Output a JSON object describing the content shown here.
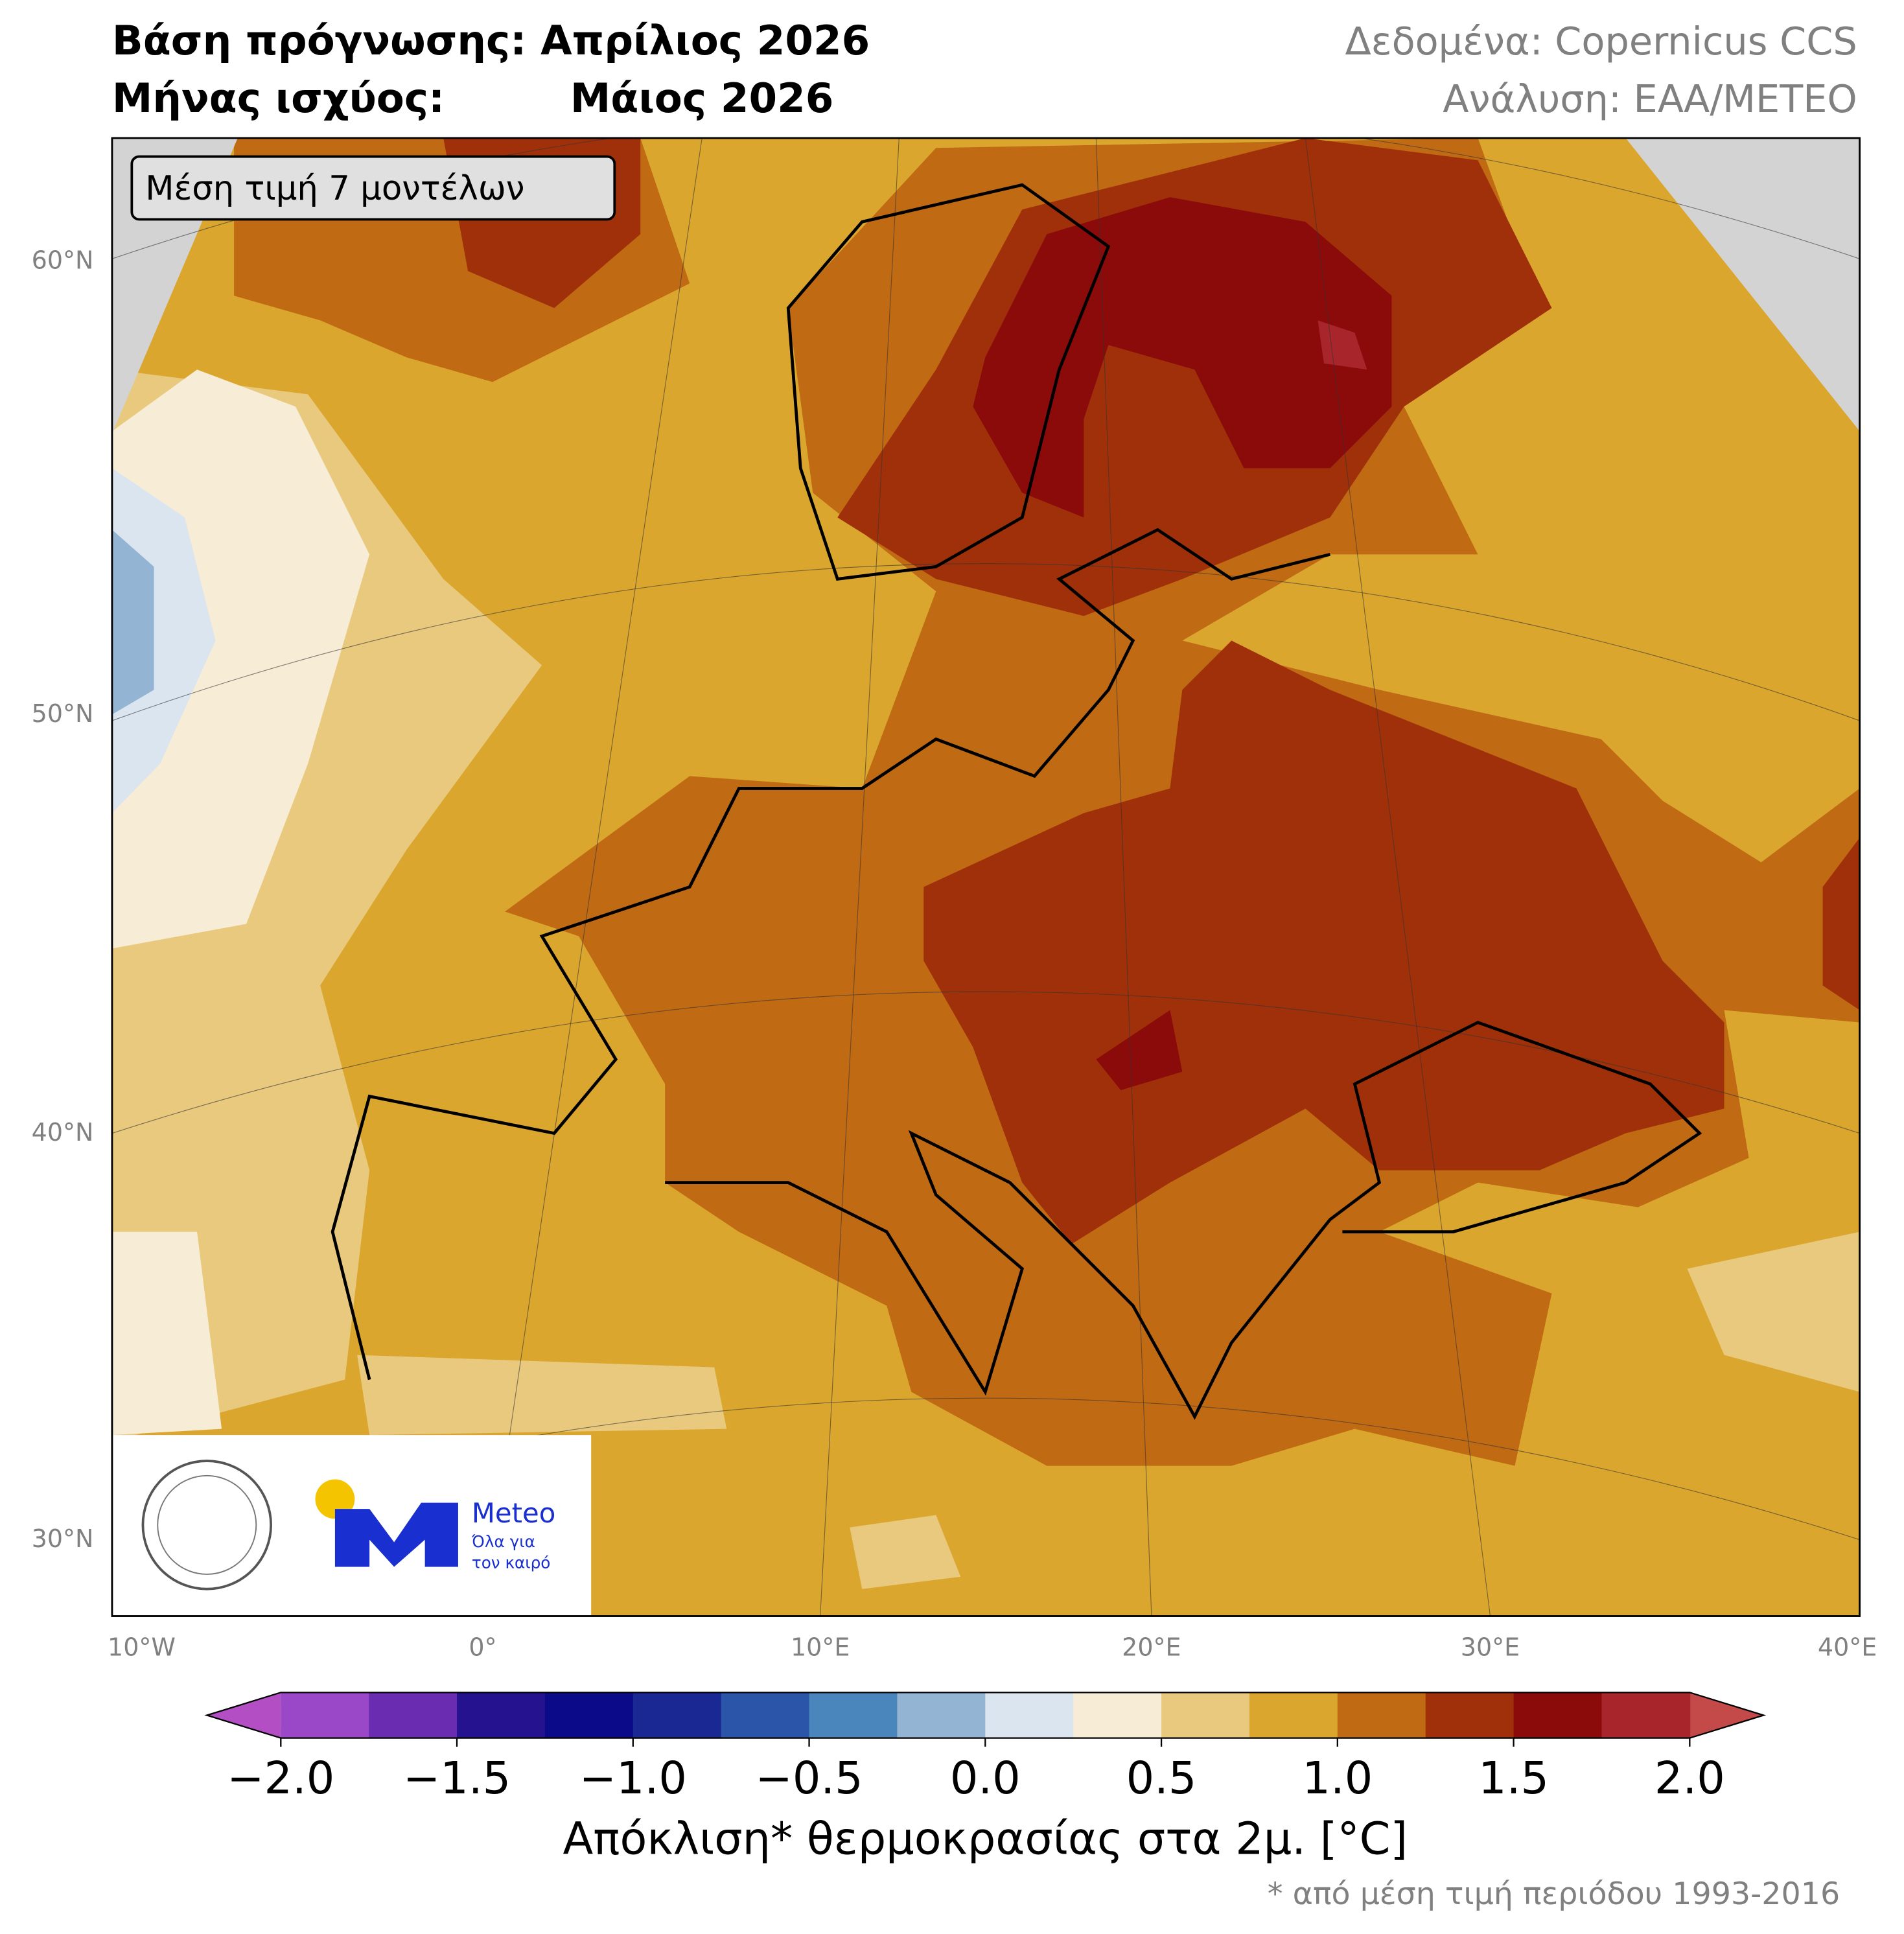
{
  "header": {
    "base_label": "Βάση πρόγνωσης:",
    "base_value": "Απρίλιος 2026",
    "valid_label": "Μήνας ισχύος:",
    "valid_value": "Μάιος 2026",
    "source": "Δεδομένα: Copernicus CCS",
    "analysis": "Ανάλυση: ΕΑΑ/METEO"
  },
  "map": {
    "inset_label": "Μέση τιμή 7 μοντέλων",
    "lat_labels": [
      "60°N",
      "50°N",
      "40°N",
      "30°N"
    ],
    "lon_labels": [
      "10°W",
      "0°",
      "10°E",
      "20°E",
      "30°E",
      "40°E"
    ]
  },
  "logo": {
    "brand": "Meteo",
    "slogan": [
      "Όλα για",
      "τον καιρό"
    ]
  },
  "colorbar": {
    "range": [
      -2,
      2
    ],
    "ticks": [
      {
        "value": -2,
        "label": "−2.0"
      },
      {
        "value": -1.5,
        "label": "−1.5"
      },
      {
        "value": -1,
        "label": "−1.0"
      },
      {
        "value": -0.5,
        "label": "−0.5"
      },
      {
        "value": 0,
        "label": "0.0"
      },
      {
        "value": 0.5,
        "label": "0.5"
      },
      {
        "value": 1,
        "label": "1.0"
      },
      {
        "value": 1.5,
        "label": "1.5"
      },
      {
        "value": 2,
        "label": "2.0"
      }
    ],
    "colors": [
      "#9a47c8",
      "#6a2cb0",
      "#24128f",
      "#0b0b8a",
      "#1a2894",
      "#2a55a8",
      "#4a86bc",
      "#93b5d3",
      "#dbe5ef",
      "#f7ecd6",
      "#e8c97e",
      "#dba62e",
      "#c06a14",
      "#a0300a",
      "#8b0a0a",
      "#a8252b"
    ],
    "under_color": "#b44ec4",
    "over_color": "#c44a4a",
    "label": "Απόκλιση* θερμοκρασίας στα 2μ. [°C]",
    "footnote": "* από μέση τιμή περιόδου 1993-2016"
  }
}
